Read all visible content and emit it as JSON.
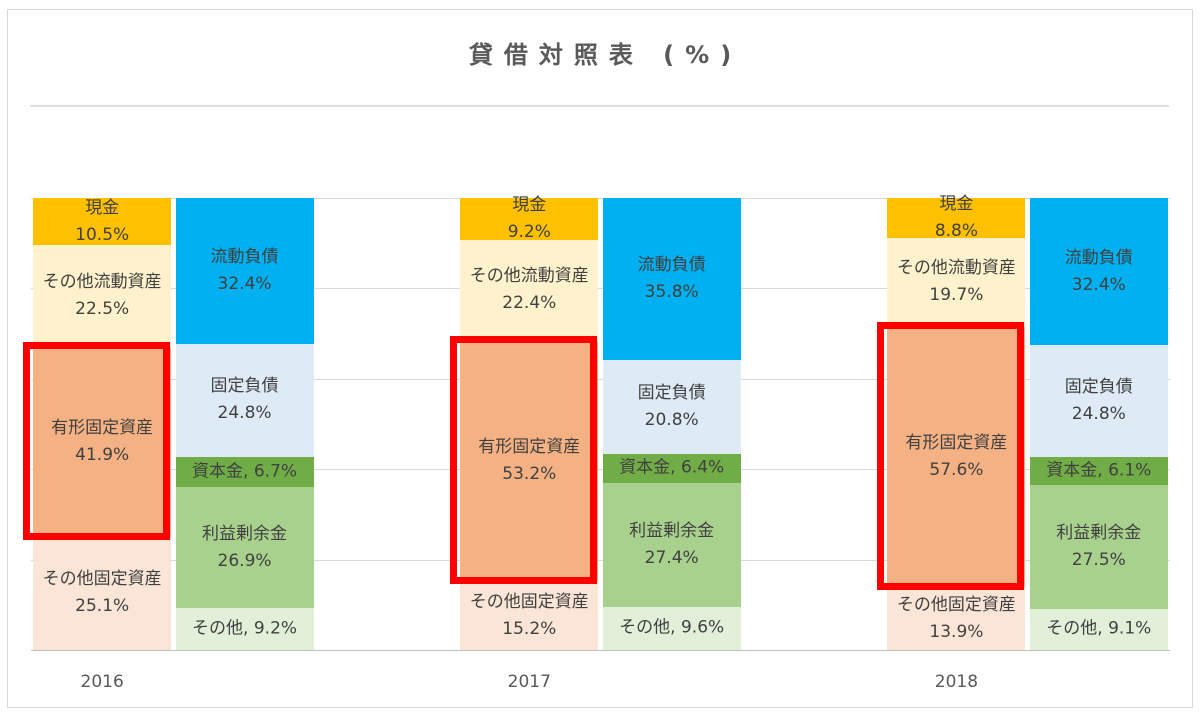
{
  "chart_data": {
    "type": "bar",
    "stacked": true,
    "title": "貸借対照表 (%)",
    "categories": [
      "2016",
      "2017",
      "2018"
    ],
    "ylim": [
      0,
      100
    ],
    "grid": true,
    "value_suffix": "%",
    "highlight_color": "#FF0000",
    "stacks": [
      {
        "series": [
          {
            "name": "現金",
            "values": [
              10.5,
              9.2,
              8.8
            ],
            "color": "#FFC000"
          },
          {
            "name": "その他流動資産",
            "values": [
              22.5,
              22.4,
              19.7
            ],
            "color": "#FFF2CC"
          },
          {
            "name": "有形固定資産",
            "values": [
              41.9,
              53.2,
              57.6
            ],
            "color": "#F4B183",
            "highlighted": true
          },
          {
            "name": "その他固定資産",
            "values": [
              25.1,
              15.2,
              13.9
            ],
            "color": "#FBE5D6"
          }
        ]
      },
      {
        "series": [
          {
            "name": "流動負債",
            "values": [
              32.4,
              35.8,
              32.4
            ],
            "color": "#00B0F0"
          },
          {
            "name": "固定負債",
            "values": [
              24.8,
              20.8,
              24.8
            ],
            "color": "#DEEBF7"
          },
          {
            "name": "資本金",
            "values": [
              6.7,
              6.4,
              6.1
            ],
            "color": "#70AD47",
            "label_separator": ", "
          },
          {
            "name": "利益剰余金",
            "values": [
              26.9,
              27.4,
              27.5
            ],
            "color": "#A9D18E"
          },
          {
            "name": "その他",
            "values": [
              9.2,
              9.6,
              9.1
            ],
            "color": "#E2F0D9",
            "label_separator": ", "
          }
        ]
      }
    ]
  }
}
